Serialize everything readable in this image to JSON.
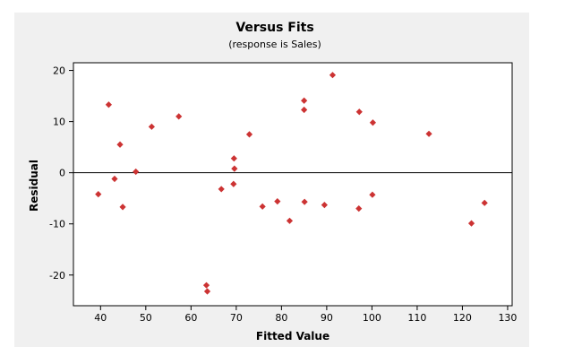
{
  "chart_data": {
    "type": "scatter",
    "title": "Versus Fits",
    "subtitle": "(response is Sales)",
    "xlabel": "Fitted Value",
    "ylabel": "Residual",
    "xlim": [
      34,
      131
    ],
    "ylim": [
      -26,
      21.5
    ],
    "xticks": [
      40,
      50,
      60,
      70,
      80,
      90,
      100,
      110,
      120,
      130
    ],
    "yticks": [
      -20,
      -10,
      0,
      10,
      20
    ],
    "reference_line_y": 0,
    "grid": false,
    "marker": "diamond",
    "colors": {
      "marker": "#cc3333",
      "background": "#f0f0f0",
      "plot_background": "#ffffff",
      "axis": "#000000"
    },
    "points": [
      {
        "x": 39.5,
        "y": -4.2
      },
      {
        "x": 41.8,
        "y": 13.3
      },
      {
        "x": 43.1,
        "y": -1.2
      },
      {
        "x": 44.3,
        "y": 5.5
      },
      {
        "x": 44.9,
        "y": -6.7
      },
      {
        "x": 47.8,
        "y": 0.2
      },
      {
        "x": 51.3,
        "y": 9.0
      },
      {
        "x": 57.3,
        "y": 11.0
      },
      {
        "x": 63.4,
        "y": -22.0
      },
      {
        "x": 63.6,
        "y": -23.2
      },
      {
        "x": 66.7,
        "y": -3.2
      },
      {
        "x": 69.5,
        "y": 2.8
      },
      {
        "x": 69.6,
        "y": 0.8
      },
      {
        "x": 69.4,
        "y": -2.2
      },
      {
        "x": 72.9,
        "y": 7.5
      },
      {
        "x": 75.8,
        "y": -6.6
      },
      {
        "x": 79.1,
        "y": -5.6
      },
      {
        "x": 81.8,
        "y": -9.4
      },
      {
        "x": 85.0,
        "y": 14.1
      },
      {
        "x": 85.0,
        "y": 12.3
      },
      {
        "x": 85.1,
        "y": -5.7
      },
      {
        "x": 89.5,
        "y": -6.3
      },
      {
        "x": 91.3,
        "y": 19.1
      },
      {
        "x": 97.2,
        "y": 11.9
      },
      {
        "x": 97.1,
        "y": -7.0
      },
      {
        "x": 100.2,
        "y": 9.8
      },
      {
        "x": 100.1,
        "y": -4.3
      },
      {
        "x": 112.6,
        "y": 7.6
      },
      {
        "x": 122.0,
        "y": -9.9
      },
      {
        "x": 124.9,
        "y": -5.9
      }
    ]
  }
}
